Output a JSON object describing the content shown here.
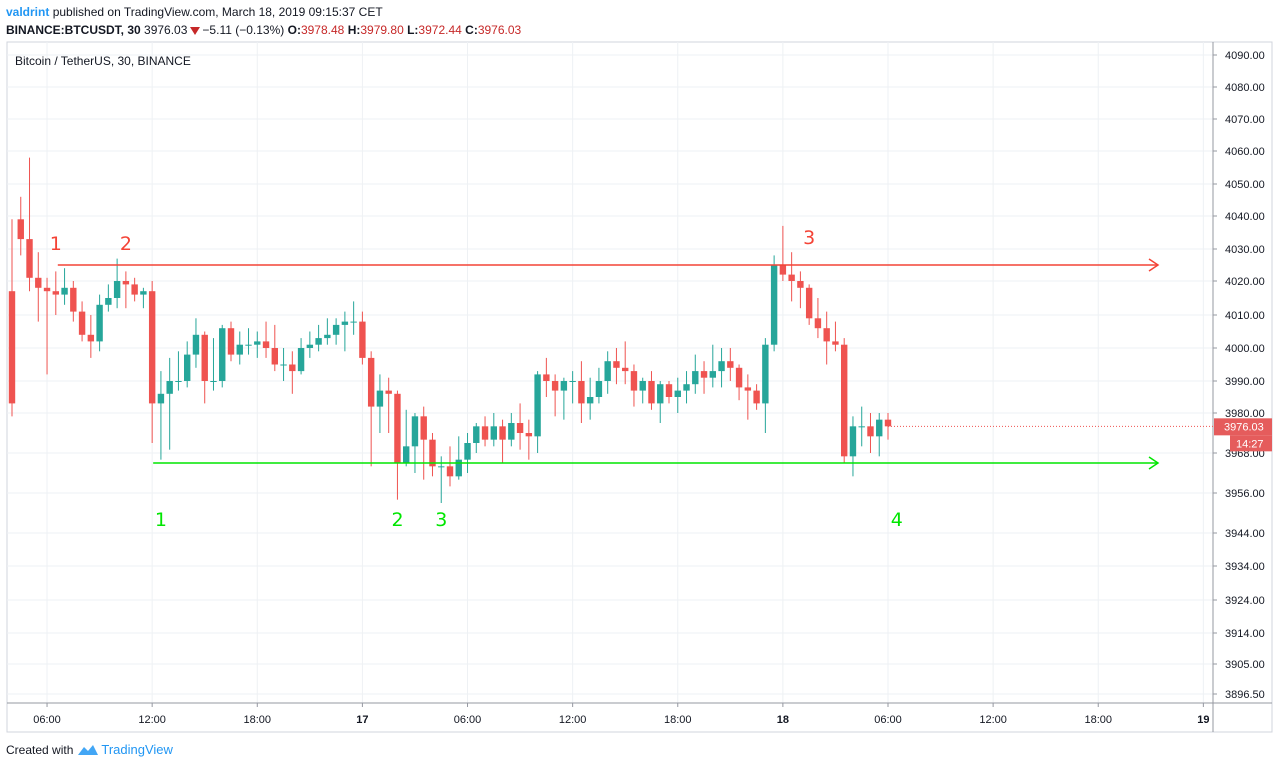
{
  "header": {
    "user": "valdrint",
    "published_text": "published on TradingView.com, March 18, 2019 09:15:37 CET",
    "symbol": "BINANCE:BTCUSDT, 30",
    "last": "3976.03",
    "change": "−5.11 (−0.13%)",
    "o_label": "O:",
    "o_value": "3978.48",
    "h_label": "H:",
    "h_value": "3979.80",
    "l_label": "L:",
    "l_value": "3972.44",
    "c_label": "C:",
    "c_value": "3976.03"
  },
  "chart_title": "Bitcoin / TetherUS, 30, BINANCE",
  "footer": {
    "created_with": "Created with",
    "brand": "TradingView"
  },
  "colors": {
    "up": "#26a69a",
    "down": "#ef5350",
    "resistance": "#f44336",
    "support": "#00e600",
    "grid": "#eef1f4"
  },
  "icons": [
    "down-triangle-icon",
    "tradingview-logo-icon"
  ],
  "chart_data": {
    "type": "candlestick",
    "ylim": [
      3891.8,
      4094
    ],
    "price_ticks": [
      "4090.00",
      "4080.00",
      "4070.00",
      "4060.00",
      "4050.00",
      "4040.00",
      "4030.00",
      "4020.00",
      "4010.00",
      "4000.00",
      "3990.00",
      "3980.00",
      "3968.00",
      "3956.00",
      "3944.00",
      "3934.00",
      "3924.00",
      "3914.00",
      "3905.00",
      "3896.50"
    ],
    "price_tick_values": [
      4090,
      4080,
      4070,
      4060,
      4050,
      4040,
      4030,
      4020,
      4010,
      4000,
      3990,
      3980,
      3968,
      3956,
      3944,
      3934,
      3924,
      3914,
      3905,
      3896.5
    ],
    "time_ticks": [
      {
        "label": "06:00",
        "bar": 4
      },
      {
        "label": "12:00",
        "bar": 16
      },
      {
        "label": "18:00",
        "bar": 28
      },
      {
        "label": "17",
        "bar": 40,
        "bold": true
      },
      {
        "label": "06:00",
        "bar": 52
      },
      {
        "label": "12:00",
        "bar": 64
      },
      {
        "label": "18:00",
        "bar": 76
      },
      {
        "label": "18",
        "bar": 88,
        "bold": true
      },
      {
        "label": "06:00",
        "bar": 100
      },
      {
        "label": "12:00",
        "bar": 112
      },
      {
        "label": "18:00",
        "bar": 124
      },
      {
        "label": "19",
        "bar": 136,
        "bold": true
      }
    ],
    "candles": [
      [
        4017,
        4039,
        3979,
        3983
      ],
      [
        4039,
        4046,
        4028,
        4033
      ],
      [
        4033,
        4058,
        4017,
        4021
      ],
      [
        4021,
        4029,
        4008,
        4018
      ],
      [
        4018,
        4021,
        3992,
        4017
      ],
      [
        4017,
        4023,
        4010,
        4016
      ],
      [
        4016,
        4024,
        4013,
        4018
      ],
      [
        4018,
        4020,
        4008,
        4011
      ],
      [
        4011,
        4014,
        4002,
        4004
      ],
      [
        4004,
        4010,
        3997,
        4002
      ],
      [
        4002,
        4016,
        3999,
        4013
      ],
      [
        4013,
        4019,
        4011,
        4015
      ],
      [
        4015,
        4027,
        4012,
        4020
      ],
      [
        4020,
        4023,
        4012,
        4019
      ],
      [
        4019,
        4021,
        4014,
        4016
      ],
      [
        4016,
        4018,
        4012,
        4017
      ],
      [
        4017,
        4020,
        3971,
        3983
      ],
      [
        3983,
        3993,
        3966,
        3986
      ],
      [
        3986,
        3997,
        3969,
        3990
      ],
      [
        3990,
        3999,
        3987,
        3990
      ],
      [
        3990,
        4002,
        3988,
        3998
      ],
      [
        3998,
        4009,
        3994,
        4004
      ],
      [
        4004,
        4005,
        3983,
        3990
      ],
      [
        3990,
        4003,
        3987,
        3990
      ],
      [
        3990,
        4007,
        3988,
        4006
      ],
      [
        4006,
        4008,
        3996,
        3998
      ],
      [
        3998,
        4005,
        3995,
        4001
      ],
      [
        4001,
        4006,
        3998,
        4001
      ],
      [
        4001,
        4005,
        3997,
        4002
      ],
      [
        4002,
        4008,
        3997,
        4000
      ],
      [
        4000,
        4007,
        3993,
        3995
      ],
      [
        3995,
        4000,
        3990,
        3995
      ],
      [
        3995,
        3999,
        3986,
        3993
      ],
      [
        3993,
        4003,
        3992,
        4000
      ],
      [
        4000,
        4005,
        3997,
        4001
      ],
      [
        4001,
        4007,
        3999,
        4003
      ],
      [
        4003,
        4009,
        4001,
        4004
      ],
      [
        4004,
        4009,
        4001,
        4007
      ],
      [
        4007,
        4011,
        3999,
        4008
      ],
      [
        4008,
        4014,
        4004,
        4008
      ],
      [
        4008,
        4011,
        3995,
        3997
      ],
      [
        3997,
        3999,
        3964,
        3982
      ],
      [
        3982,
        3992,
        3974,
        3987
      ],
      [
        3987,
        3991,
        3974,
        3986
      ],
      [
        3986,
        3987,
        3954,
        3965
      ],
      [
        3965,
        3981,
        3964,
        3970
      ],
      [
        3970,
        3980,
        3962,
        3979
      ],
      [
        3979,
        3982,
        3960,
        3972
      ],
      [
        3972,
        3974,
        3961,
        3964
      ],
      [
        3964,
        3967,
        3953,
        3964
      ],
      [
        3964,
        3970,
        3958,
        3961
      ],
      [
        3961,
        3973,
        3960,
        3966
      ],
      [
        3966,
        3974,
        3962,
        3971
      ],
      [
        3971,
        3977,
        3968,
        3976
      ],
      [
        3976,
        3979,
        3970,
        3972
      ],
      [
        3972,
        3980,
        3970,
        3976
      ],
      [
        3976,
        3978,
        3965,
        3972
      ],
      [
        3972,
        3980,
        3970,
        3977
      ],
      [
        3977,
        3983,
        3969,
        3974
      ],
      [
        3974,
        3978,
        3966,
        3973
      ],
      [
        3973,
        3993,
        3968,
        3992
      ],
      [
        3992,
        3997,
        3985,
        3990
      ],
      [
        3990,
        3992,
        3979,
        3987
      ],
      [
        3987,
        3991,
        3978,
        3990
      ],
      [
        3990,
        3993,
        3983,
        3990
      ],
      [
        3990,
        3996,
        3977,
        3983
      ],
      [
        3983,
        3991,
        3978,
        3985
      ],
      [
        3985,
        3994,
        3983,
        3990
      ],
      [
        3990,
        3999,
        3986,
        3996
      ],
      [
        3996,
        4000,
        3989,
        3994
      ],
      [
        3994,
        4002,
        3989,
        3993
      ],
      [
        3993,
        3995,
        3982,
        3987
      ],
      [
        3987,
        3991,
        3983,
        3990
      ],
      [
        3990,
        3993,
        3981,
        3983
      ],
      [
        3983,
        3990,
        3977,
        3989
      ],
      [
        3989,
        3990,
        3983,
        3985
      ],
      [
        3985,
        3991,
        3980,
        3987
      ],
      [
        3987,
        3993,
        3983,
        3989
      ],
      [
        3989,
        3998,
        3986,
        3993
      ],
      [
        3993,
        3996,
        3986,
        3991
      ],
      [
        3991,
        4001,
        3988,
        3993
      ],
      [
        3993,
        4000,
        3988,
        3996
      ],
      [
        3996,
        4000,
        3990,
        3994
      ],
      [
        3994,
        3995,
        3984,
        3988
      ],
      [
        3988,
        3992,
        3978,
        3987
      ],
      [
        3987,
        3989,
        3981,
        3983
      ],
      [
        3983,
        4003,
        3974,
        4001
      ],
      [
        4001,
        4028,
        3999,
        4025
      ],
      [
        4025,
        4037,
        4020,
        4022
      ],
      [
        4022,
        4029,
        4014,
        4020
      ],
      [
        4020,
        4023,
        4012,
        4018
      ],
      [
        4018,
        4019,
        4007,
        4009
      ],
      [
        4009,
        4015,
        4003,
        4006
      ],
      [
        4006,
        4011,
        3995,
        4002
      ],
      [
        4002,
        4008,
        3999,
        4001
      ],
      [
        4001,
        4003,
        3965,
        3967
      ],
      [
        3967,
        3979,
        3961,
        3976
      ],
      [
        3976,
        3982,
        3970,
        3976
      ],
      [
        3976,
        3980,
        3968,
        3973
      ],
      [
        3973,
        3980,
        3967,
        3978
      ],
      [
        3978,
        3980,
        3972,
        3976
      ]
    ],
    "resistance": {
      "price": 4025
    },
    "support": {
      "price": 3965
    },
    "annotations": [
      {
        "text": "1",
        "color": "red",
        "bar": 5
      },
      {
        "text": "2",
        "color": "red",
        "bar": 13
      },
      {
        "text": "3",
        "color": "red",
        "bar": 91
      },
      {
        "text": "1",
        "color": "green",
        "bar": 17
      },
      {
        "text": "2",
        "color": "green",
        "bar": 44
      },
      {
        "text": "3",
        "color": "green",
        "bar": 49
      },
      {
        "text": "4",
        "color": "green",
        "bar": 101
      }
    ],
    "last_price_label": "3976.03",
    "countdown_label": "14:27"
  }
}
